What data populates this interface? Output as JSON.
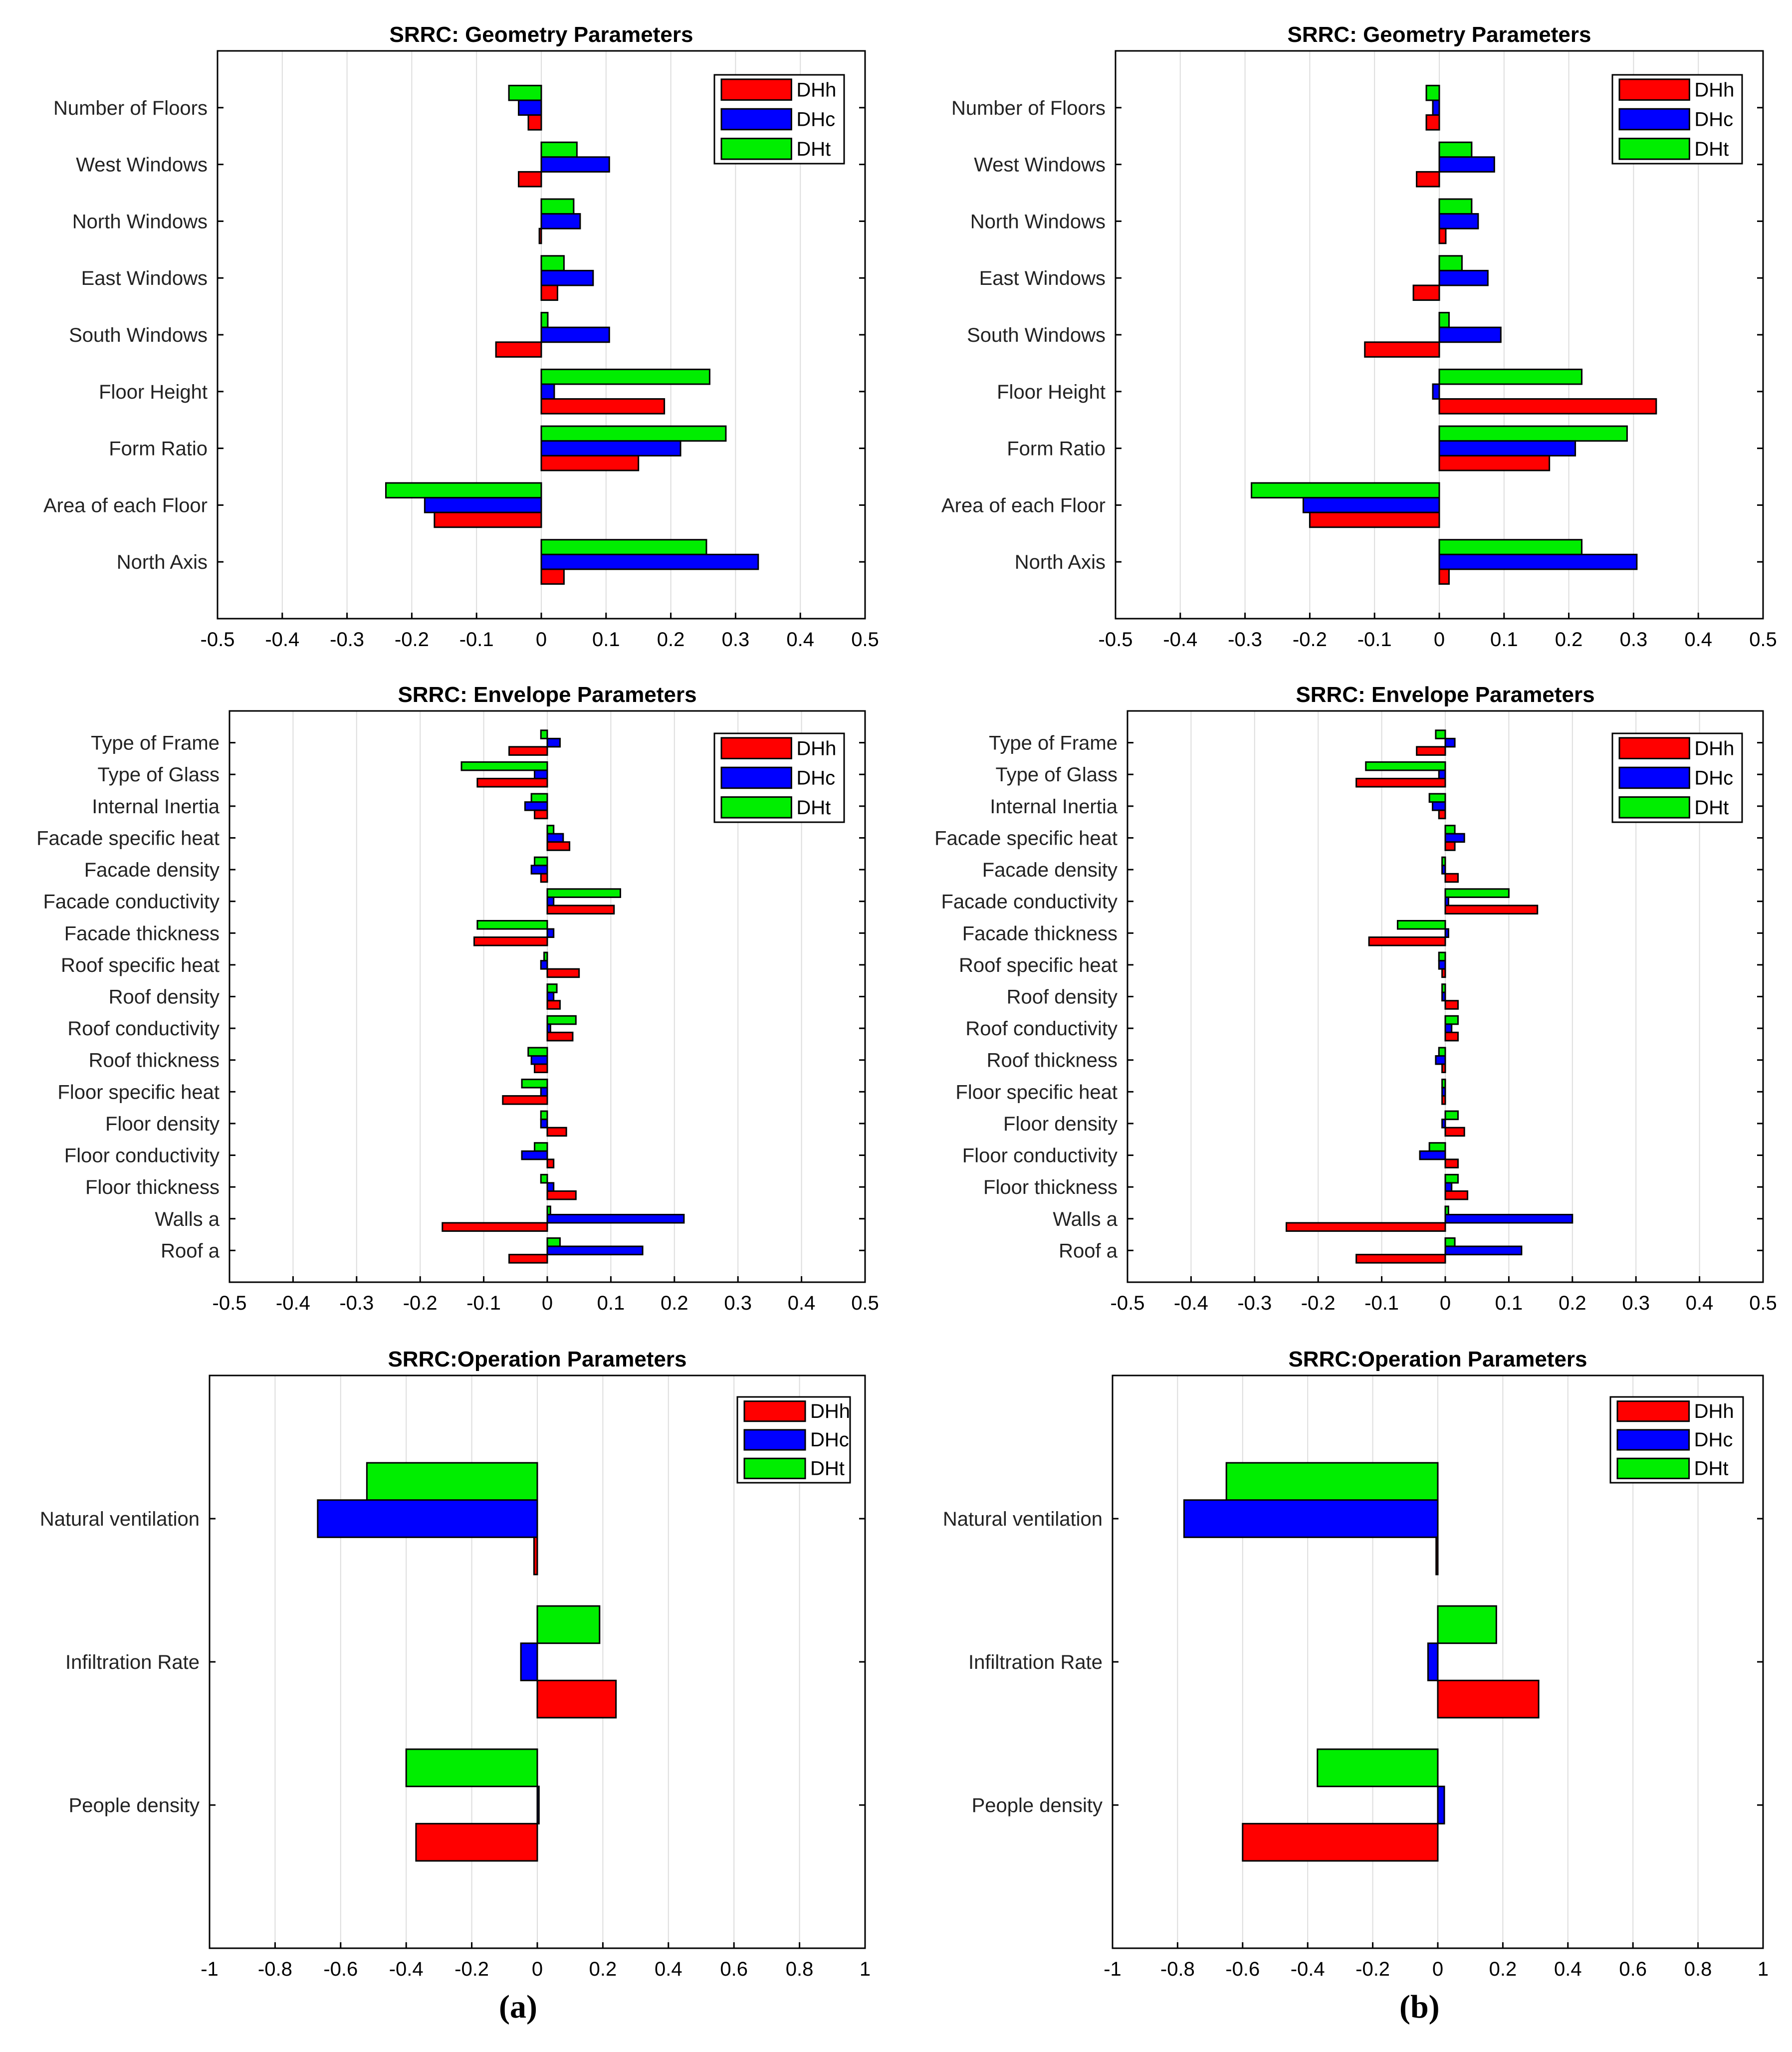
{
  "colors": {
    "DHh": "#ff0000",
    "DHc": "#0000ff",
    "DHt": "#00ee00"
  },
  "panel_labels": [
    "(a)",
    "(b)"
  ],
  "chart_data": [
    {
      "id": "a-geometry",
      "type": "bar",
      "orientation": "horizontal",
      "title": "SRRC: Geometry Parameters",
      "categories": [
        "Number of Floors",
        "West Windows",
        "North Windows",
        "East Windows",
        "South Windows",
        "Floor Height",
        "Form Ratio",
        "Area of each Floor",
        "North Axis"
      ],
      "series": [
        {
          "name": "DHh",
          "values": [
            -0.02,
            -0.035,
            -0.003,
            0.025,
            -0.07,
            0.19,
            0.15,
            -0.165,
            0.035
          ]
        },
        {
          "name": "DHc",
          "values": [
            -0.035,
            0.105,
            0.06,
            0.08,
            0.105,
            0.02,
            0.215,
            -0.18,
            0.335
          ]
        },
        {
          "name": "DHt",
          "values": [
            -0.05,
            0.055,
            0.05,
            0.035,
            0.01,
            0.26,
            0.285,
            -0.24,
            0.255
          ]
        }
      ],
      "xlim": [
        -0.5,
        0.5
      ],
      "xticks": [
        "-0.5",
        "-0.4",
        "-0.3",
        "-0.2",
        "-0.1",
        "0",
        "0.1",
        "0.2",
        "0.3",
        "0.4",
        "0.5"
      ],
      "grid": true,
      "legend": "top-right"
    },
    {
      "id": "b-geometry",
      "type": "bar",
      "orientation": "horizontal",
      "title": "SRRC: Geometry Parameters",
      "categories": [
        "Number of Floors",
        "West Windows",
        "North Windows",
        "East Windows",
        "South Windows",
        "Floor Height",
        "Form Ratio",
        "Area of each Floor",
        "North Axis"
      ],
      "series": [
        {
          "name": "DHh",
          "values": [
            -0.02,
            -0.035,
            0.01,
            -0.04,
            -0.115,
            0.335,
            0.17,
            -0.2,
            0.015
          ]
        },
        {
          "name": "DHc",
          "values": [
            -0.01,
            0.085,
            0.06,
            0.075,
            0.095,
            -0.01,
            0.21,
            -0.21,
            0.305
          ]
        },
        {
          "name": "DHt",
          "values": [
            -0.02,
            0.05,
            0.05,
            0.035,
            0.015,
            0.22,
            0.29,
            -0.29,
            0.22
          ]
        }
      ],
      "xlim": [
        -0.5,
        0.5
      ],
      "xticks": [
        "-0.5",
        "-0.4",
        "-0.3",
        "-0.2",
        "-0.1",
        "0",
        "0.1",
        "0.2",
        "0.3",
        "0.4",
        "0.5"
      ],
      "grid": true,
      "legend": "top-right"
    },
    {
      "id": "a-envelope",
      "type": "bar",
      "orientation": "horizontal",
      "title": "SRRC: Envelope Parameters",
      "categories": [
        "Type of Frame",
        "Type of Glass",
        "Internal Inertia",
        "Facade specific heat",
        "Facade density",
        "Facade conductivity",
        "Facade thickness",
        "Roof specific heat",
        "Roof density",
        "Roof conductivity",
        "Roof thickness",
        "Floor specific heat",
        "Floor density",
        "Floor conductivity",
        "Floor thickness",
        "Walls a",
        "Roof a"
      ],
      "series": [
        {
          "name": "DHh",
          "values": [
            -0.06,
            -0.11,
            -0.02,
            0.035,
            -0.01,
            0.105,
            -0.115,
            0.05,
            0.02,
            0.04,
            -0.02,
            -0.07,
            0.03,
            0.01,
            0.045,
            -0.165,
            -0.06
          ]
        },
        {
          "name": "DHc",
          "values": [
            0.02,
            -0.02,
            -0.035,
            0.025,
            -0.025,
            0.01,
            0.01,
            -0.01,
            0.01,
            0.005,
            -0.025,
            -0.01,
            -0.01,
            -0.04,
            0.01,
            0.215,
            0.15
          ]
        },
        {
          "name": "DHt",
          "values": [
            -0.01,
            -0.135,
            -0.025,
            0.01,
            -0.02,
            0.115,
            -0.11,
            -0.005,
            0.015,
            0.045,
            -0.03,
            -0.04,
            -0.01,
            -0.02,
            -0.01,
            0.005,
            0.02
          ]
        }
      ],
      "xlim": [
        -0.5,
        0.5
      ],
      "xticks": [
        "-0.5",
        "-0.4",
        "-0.3",
        "-0.2",
        "-0.1",
        "0",
        "0.1",
        "0.2",
        "0.3",
        "0.4",
        "0.5"
      ],
      "grid": true,
      "legend": "top-right"
    },
    {
      "id": "b-envelope",
      "type": "bar",
      "orientation": "horizontal",
      "title": "SRRC: Envelope Parameters",
      "categories": [
        "Type of Frame",
        "Type of Glass",
        "Internal Inertia",
        "Facade specific heat",
        "Facade density",
        "Facade conductivity",
        "Facade thickness",
        "Roof specific heat",
        "Roof density",
        "Roof conductivity",
        "Roof thickness",
        "Floor specific heat",
        "Floor density",
        "Floor conductivity",
        "Floor thickness",
        "Walls a",
        "Roof a"
      ],
      "series": [
        {
          "name": "DHh",
          "values": [
            -0.045,
            -0.14,
            -0.01,
            0.015,
            0.02,
            0.145,
            -0.12,
            -0.005,
            0.02,
            0.02,
            -0.005,
            -0.005,
            0.03,
            0.02,
            0.035,
            -0.25,
            -0.14
          ]
        },
        {
          "name": "DHc",
          "values": [
            0.015,
            -0.01,
            -0.02,
            0.03,
            -0.005,
            0.005,
            0.005,
            -0.01,
            -0.005,
            0.01,
            -0.015,
            -0.005,
            -0.005,
            -0.04,
            0.01,
            0.2,
            0.12
          ]
        },
        {
          "name": "DHt",
          "values": [
            -0.015,
            -0.125,
            -0.025,
            0.015,
            -0.005,
            0.1,
            -0.075,
            -0.01,
            -0.005,
            0.02,
            -0.01,
            -0.005,
            0.02,
            -0.025,
            0.02,
            0.005,
            0.015
          ]
        }
      ],
      "xlim": [
        -0.5,
        0.5
      ],
      "xticks": [
        "-0.5",
        "-0.4",
        "-0.3",
        "-0.2",
        "-0.1",
        "0",
        "0.1",
        "0.2",
        "0.3",
        "0.4",
        "0.5"
      ],
      "grid": true,
      "legend": "top-right"
    },
    {
      "id": "a-operation",
      "type": "bar",
      "orientation": "horizontal",
      "title": "SRRC:Operation Parameters",
      "categories": [
        "Natural ventilation",
        "Infiltration Rate",
        "People density"
      ],
      "series": [
        {
          "name": "DHh",
          "values": [
            -0.01,
            0.24,
            -0.37
          ]
        },
        {
          "name": "DHc",
          "values": [
            -0.67,
            -0.05,
            0.005
          ]
        },
        {
          "name": "DHt",
          "values": [
            -0.52,
            0.19,
            -0.4
          ]
        }
      ],
      "xlim": [
        -1,
        1
      ],
      "xticks": [
        "-1",
        "-0.8",
        "-0.6",
        "-0.4",
        "-0.2",
        "0",
        "0.2",
        "0.4",
        "0.6",
        "0.8",
        "1"
      ],
      "grid": true,
      "legend": "top-right"
    },
    {
      "id": "b-operation",
      "type": "bar",
      "orientation": "horizontal",
      "title": "SRRC:Operation Parameters",
      "categories": [
        "Natural ventilation",
        "Infiltration Rate",
        "People density"
      ],
      "series": [
        {
          "name": "DHh",
          "values": [
            -0.005,
            0.31,
            -0.6
          ]
        },
        {
          "name": "DHc",
          "values": [
            -0.78,
            -0.03,
            0.02
          ]
        },
        {
          "name": "DHt",
          "values": [
            -0.65,
            0.18,
            -0.37
          ]
        }
      ],
      "xlim": [
        -1,
        1
      ],
      "xticks": [
        "-1",
        "-0.8",
        "-0.6",
        "-0.4",
        "-0.2",
        "0",
        "0.2",
        "0.4",
        "0.6",
        "0.8",
        "1"
      ],
      "grid": true,
      "legend": "top-right"
    }
  ]
}
